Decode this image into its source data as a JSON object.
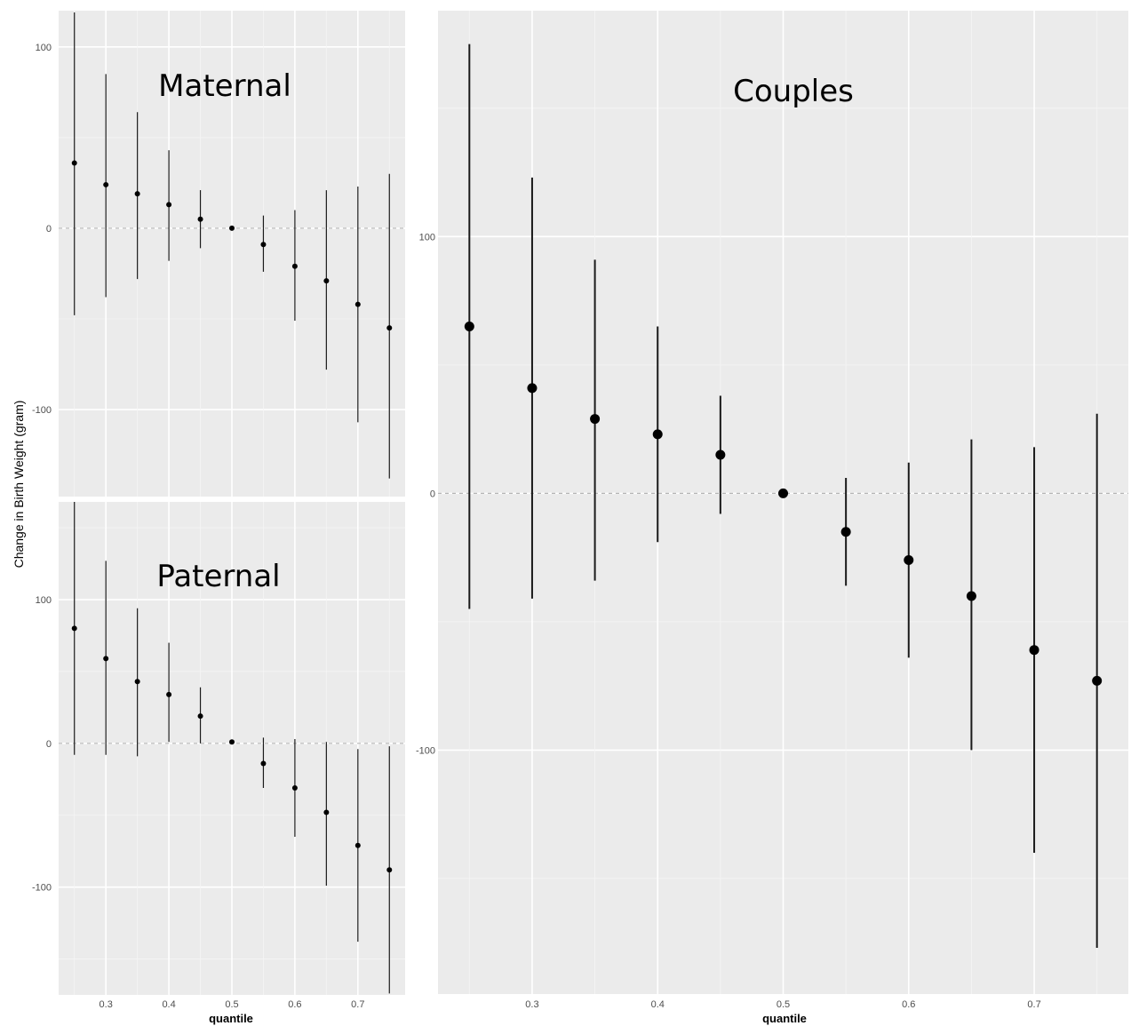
{
  "figure": {
    "ylabel": "Change in Birth Weight (gram)",
    "xlabel": "quantile"
  },
  "chart_data": [
    {
      "type": "errorbar",
      "title": "Maternal",
      "xlabel": "",
      "ylabel": "Change in Birth Weight (gram)",
      "ylim": [
        -148,
        120
      ],
      "yticks": [
        -100,
        0,
        100
      ],
      "zero_line": "dotted",
      "x": [
        0.25,
        0.3,
        0.35,
        0.4,
        0.45,
        0.5,
        0.55,
        0.6,
        0.65,
        0.7,
        0.75
      ],
      "estimate": [
        36,
        24,
        19,
        13,
        5,
        0,
        -9,
        -21,
        -29,
        -42,
        -55
      ],
      "lower": [
        -48,
        -38,
        -28,
        -18,
        -11,
        0,
        -24,
        -51,
        -78,
        -107,
        -138
      ],
      "upper": [
        119,
        85,
        64,
        43,
        21,
        0,
        7,
        10,
        21,
        23,
        30
      ],
      "point_size": "small"
    },
    {
      "type": "errorbar",
      "title": "Paternal",
      "xlabel": "quantile",
      "ylabel": "Change in Birth Weight (gram)",
      "xlim": [
        0.225,
        0.775
      ],
      "ylim": [
        -175,
        168
      ],
      "yticks": [
        -100,
        0,
        100
      ],
      "xticks": [
        0.3,
        0.4,
        0.5,
        0.6,
        0.7
      ],
      "zero_line": "dotted",
      "x": [
        0.25,
        0.3,
        0.35,
        0.4,
        0.45,
        0.5,
        0.55,
        0.6,
        0.65,
        0.7,
        0.75
      ],
      "estimate": [
        80,
        59,
        43,
        34,
        19,
        1,
        -14,
        -31,
        -48,
        -71,
        -88
      ],
      "lower": [
        -8,
        -8,
        -9,
        1,
        0,
        1,
        -31,
        -65,
        -99,
        -138,
        -174
      ],
      "upper": [
        168,
        127,
        94,
        70,
        39,
        1,
        4,
        3,
        1,
        -4,
        -2
      ],
      "point_size": "small"
    },
    {
      "type": "errorbar",
      "title": "Couples",
      "xlabel": "quantile",
      "ylabel": "",
      "xlim": [
        0.225,
        0.775
      ],
      "ylim": [
        -195,
        188
      ],
      "yticks": [
        -100,
        0,
        100
      ],
      "xticks": [
        0.3,
        0.4,
        0.5,
        0.6,
        0.7
      ],
      "zero_line": "dashed",
      "x": [
        0.25,
        0.3,
        0.35,
        0.4,
        0.45,
        0.5,
        0.55,
        0.6,
        0.65,
        0.7,
        0.75
      ],
      "estimate": [
        65,
        41,
        29,
        23,
        15,
        0,
        -15,
        -26,
        -40,
        -61,
        -73
      ],
      "lower": [
        -45,
        -41,
        -34,
        -19,
        -8,
        0,
        -36,
        -64,
        -100,
        -140,
        -177
      ],
      "upper": [
        175,
        123,
        91,
        65,
        38,
        0,
        6,
        12,
        21,
        18,
        31
      ],
      "point_size": "large"
    }
  ]
}
